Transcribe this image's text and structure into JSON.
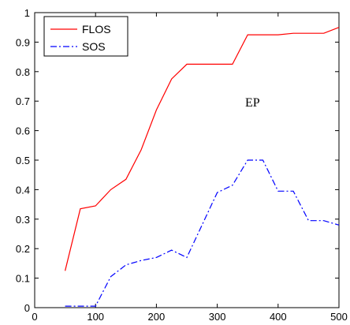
{
  "chart_data": {
    "type": "line",
    "title": "",
    "xlabel": "",
    "ylabel": "",
    "xlim": [
      0,
      500
    ],
    "ylim": [
      0,
      1
    ],
    "x_ticks": [
      0,
      100,
      200,
      300,
      400,
      500
    ],
    "y_ticks": [
      0,
      0.1,
      0.2,
      0.3,
      0.4,
      0.5,
      0.6,
      0.7,
      0.8,
      0.9,
      1
    ],
    "x_tick_labels": [
      "0",
      "100",
      "200",
      "300",
      "400",
      "500"
    ],
    "y_tick_labels": [
      "0",
      "0.1",
      "0.2",
      "0.3",
      "0.4",
      "0.5",
      "0.6",
      "0.7",
      "0.8",
      "0.9",
      "1"
    ],
    "grid": false,
    "legend_position": "top-left",
    "annotation": "EP",
    "series": [
      {
        "name": "FLOS",
        "color": "#ff0000",
        "line_style": "solid",
        "x": [
          50,
          75,
          100,
          125,
          150,
          175,
          200,
          225,
          250,
          275,
          300,
          325,
          350,
          375,
          400,
          425,
          450,
          475,
          500
        ],
        "y": [
          0.125,
          0.335,
          0.345,
          0.4,
          0.435,
          0.535,
          0.67,
          0.775,
          0.825,
          0.825,
          0.825,
          0.825,
          0.925,
          0.925,
          0.925,
          0.93,
          0.93,
          0.93,
          0.95
        ]
      },
      {
        "name": "SOS",
        "color": "#0000ff",
        "line_style": "dashdot",
        "x": [
          50,
          75,
          100,
          125,
          150,
          175,
          200,
          225,
          250,
          275,
          300,
          325,
          350,
          375,
          400,
          425,
          450,
          475,
          500
        ],
        "y": [
          0.005,
          0.005,
          0.005,
          0.105,
          0.145,
          0.16,
          0.17,
          0.195,
          0.17,
          0.28,
          0.39,
          0.415,
          0.5,
          0.5,
          0.395,
          0.395,
          0.295,
          0.295,
          0.28
        ]
      }
    ]
  }
}
